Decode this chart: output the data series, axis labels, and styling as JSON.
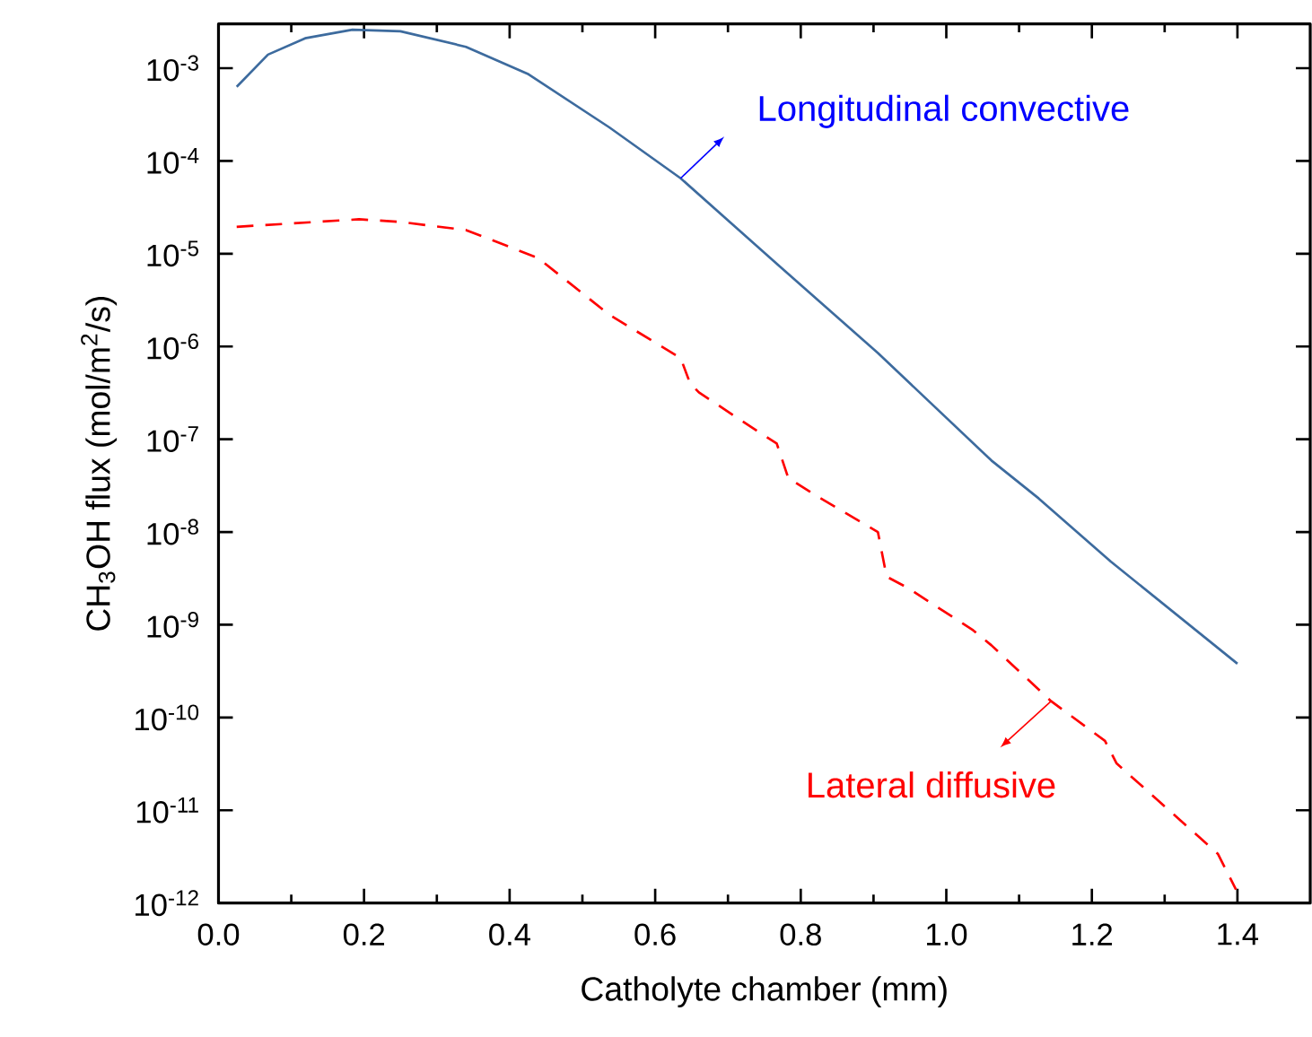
{
  "chart_data": {
    "type": "line",
    "xlabel": "Catholyte chamber (mm)",
    "ylabel": "CH$_{3}$OH flux (mol/m$^{2}$/s)",
    "log": "y",
    "xlim": [
      0,
      1.5
    ],
    "ylim": [
      1e-12,
      0.003
    ],
    "xticks": [
      {
        "value": 0,
        "label": "0.0"
      },
      {
        "value": 0.2,
        "label": "0.2"
      },
      {
        "value": 0.4,
        "label": "0.4"
      },
      {
        "value": 0.6,
        "label": "0.6"
      },
      {
        "value": 0.8,
        "label": "0.8"
      },
      {
        "value": 1.0,
        "label": "1.0"
      },
      {
        "value": 1.2,
        "label": "1.2"
      },
      {
        "value": 1.4,
        "label": "1.4"
      }
    ],
    "yticks": [
      {
        "value": 0.001,
        "label": "10$^{-3}$"
      },
      {
        "value": 0.0001,
        "label": "10$^{-4}$"
      },
      {
        "value": 1e-05,
        "label": "10$^{-5}$"
      },
      {
        "value": 1e-06,
        "label": "10$^{-6}$"
      },
      {
        "value": 1e-07,
        "label": "10$^{-7}$"
      },
      {
        "value": 1e-08,
        "label": "10$^{-8}$"
      },
      {
        "value": 1e-09,
        "label": "10$^{-9}$"
      },
      {
        "value": 1e-10,
        "label": "10$^{-10}$"
      },
      {
        "value": 1e-11,
        "label": "10$^{-11}$"
      },
      {
        "value": 1e-12,
        "label": "10$^{-12}$"
      }
    ],
    "grid": false,
    "marker": "none",
    "series": [
      {
        "color": "#3d6b9e",
        "line_style": "solid",
        "x": [
          0.025,
          0.068,
          0.119,
          0.184,
          0.25,
          0.34,
          0.426,
          0.537,
          0.635,
          0.767,
          0.906,
          1.062,
          1.127,
          1.226,
          1.4
        ],
        "values": [
          0.00063,
          0.0014,
          0.0021,
          0.0026,
          0.0025,
          0.0017,
          0.00086,
          0.00023,
          6.5e-05,
          7.8e-06,
          8.5e-07,
          5.9e-08,
          2.3e-08,
          4.8e-09,
          3.8e-10
        ]
      },
      {
        "color": "#ff0000",
        "line_style": "dashed",
        "x": [
          0.025,
          0.193,
          0.25,
          0.34,
          0.439,
          0.537,
          0.635,
          0.648,
          0.66,
          0.742,
          0.767,
          0.783,
          0.82,
          0.906,
          0.918,
          0.947,
          1.037,
          1.062,
          1.144,
          1.218,
          1.234,
          1.373,
          1.398
        ],
        "values": [
          1.95e-05,
          2.35e-05,
          2.2e-05,
          1.8e-05,
          9e-06,
          2.2e-06,
          7.5e-07,
          4e-07,
          3.2e-07,
          1.2e-07,
          9e-08,
          3.8e-08,
          2.5e-08,
          1e-08,
          3.3e-09,
          2.5e-09,
          8.7e-10,
          6e-10,
          1.5e-10,
          5.6e-11,
          3.2e-11,
          3.4e-12,
          1.4e-12
        ]
      }
    ],
    "annotations": [
      "Longitudinal convective",
      "Lateral diffusive"
    ]
  }
}
